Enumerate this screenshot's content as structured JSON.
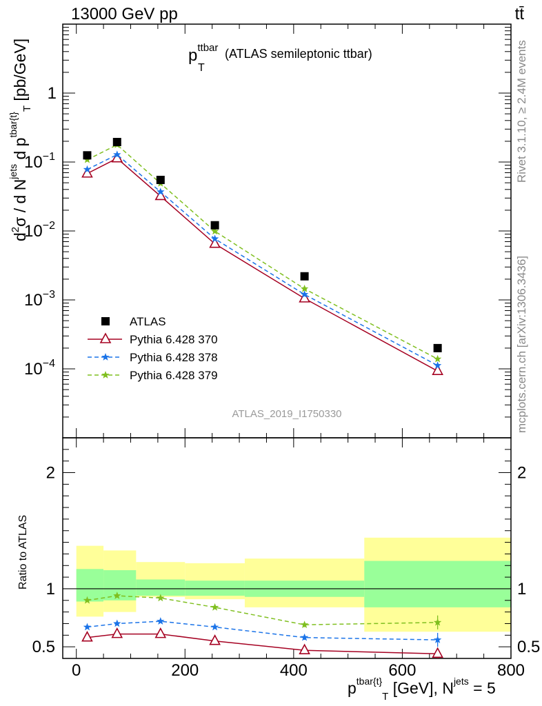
{
  "header": {
    "energy_label": "13000 GeV pp",
    "process_label": "tt̄"
  },
  "side": {
    "rivet_label": "Rivet 3.1.10, ≥ 2.4M events",
    "mcplots_label": "mcplots.cern.ch [arXiv:1306.3436]"
  },
  "colors": {
    "atlas": "#000000",
    "p370": "#a50021",
    "p378": "#1a73e8",
    "p379": "#7fbf1f",
    "band_inner": "#99ff99",
    "band_outer": "#ffff99"
  },
  "chart_data": {
    "type": "scatter",
    "title": "p_T^ttbar (ATLAS semileptonic ttbar)",
    "title_main": "p",
    "title_sub": "T",
    "title_sup": "ttbar",
    "title_rest": "(ATLAS semileptonic ttbar)",
    "analysis_label": "ATLAS_2019_I1750330",
    "ylabel": "d²σ / d N^jets d p^tbar{t}_T [pb/GeV]",
    "ylabel_parts": {
      "d1": "d",
      "sup2": "2",
      "sigma": "σ / d N",
      "jets": "jets",
      "dp": " d p",
      "tbar": "tbar{t}",
      "T": "T",
      "units": " [pb/GeV]"
    },
    "xlabel": "p^tbar{t}_T [GeV], N^jets = 5",
    "xlabel_parts": {
      "p": "p",
      "tbar": "tbar{t}",
      "T": "T",
      "mid": " [GeV], N",
      "jets": "jets",
      "end": " = 5"
    },
    "ratio_ylabel": "Ratio to ATLAS",
    "xlim": [
      -25,
      800
    ],
    "ylim_main": [
      1e-05,
      10
    ],
    "ylim_ratio": [
      0.4,
      2.3
    ],
    "log_y_main": true,
    "x_ticks": [
      0,
      200,
      400,
      600,
      800
    ],
    "x_tick_labels": [
      "0",
      "200",
      "400",
      "600",
      "800"
    ],
    "main_y_ticks": [
      {
        "value": 0.0001,
        "base": "10",
        "exp": "−4"
      },
      {
        "value": 0.001,
        "base": "10",
        "exp": "−3"
      },
      {
        "value": 0.01,
        "base": "10",
        "exp": "−2"
      },
      {
        "value": 0.1,
        "base": "10",
        "exp": "−1"
      },
      {
        "value": 1,
        "base": "1",
        "exp": ""
      }
    ],
    "ratio_y_ticks": [
      {
        "value": 0.5,
        "label": "0.5"
      },
      {
        "value": 1,
        "label": "1"
      },
      {
        "value": 2,
        "label": "2"
      }
    ],
    "x": [
      20,
      75,
      155,
      255,
      420,
      665
    ],
    "bins": [
      [
        0,
        50
      ],
      [
        50,
        110
      ],
      [
        110,
        200
      ],
      [
        200,
        310
      ],
      [
        310,
        530
      ],
      [
        530,
        800
      ]
    ],
    "band_inner": [
      [
        0.89,
        1.17
      ],
      [
        0.9,
        1.16
      ],
      [
        0.94,
        1.08
      ],
      [
        0.94,
        1.07
      ],
      [
        0.93,
        1.07
      ],
      [
        0.84,
        1.24
      ]
    ],
    "band_outer": [
      [
        0.76,
        1.37
      ],
      [
        0.8,
        1.33
      ],
      [
        0.93,
        1.23
      ],
      [
        0.91,
        1.22
      ],
      [
        0.84,
        1.26
      ],
      [
        0.63,
        1.44
      ]
    ],
    "series": [
      {
        "name": "ATLAS",
        "key": "atlas",
        "marker": "square",
        "values": [
          0.125,
          0.195,
          0.055,
          0.0121,
          0.0022,
          0.0002
        ],
        "ratio": [
          1,
          1,
          1,
          1,
          1,
          1
        ]
      },
      {
        "name": "Pythia 6.428 370",
        "key": "p370",
        "marker": "triangle",
        "values": [
          0.068,
          0.113,
          0.032,
          0.0065,
          0.00105,
          9.3e-05
        ],
        "ratio": [
          0.58,
          0.61,
          0.61,
          0.55,
          0.47,
          0.44
        ],
        "ratio_err": [
          0,
          0,
          0,
          0,
          0,
          0.04
        ]
      },
      {
        "name": "Pythia 6.428 378",
        "key": "p378",
        "marker": "star",
        "values": [
          0.078,
          0.128,
          0.037,
          0.0077,
          0.0012,
          0.000112
        ],
        "ratio": [
          0.67,
          0.7,
          0.72,
          0.67,
          0.58,
          0.56
        ],
        "ratio_err": [
          0,
          0,
          0,
          0,
          0.02,
          0.06
        ]
      },
      {
        "name": "Pythia 6.428 379",
        "key": "p379",
        "marker": "star",
        "values": [
          0.108,
          0.178,
          0.049,
          0.0099,
          0.00145,
          0.000139
        ],
        "ratio": [
          0.9,
          0.94,
          0.92,
          0.84,
          0.69,
          0.71
        ],
        "ratio_err": [
          0,
          0,
          0,
          0,
          0.02,
          0.06
        ]
      }
    ]
  }
}
